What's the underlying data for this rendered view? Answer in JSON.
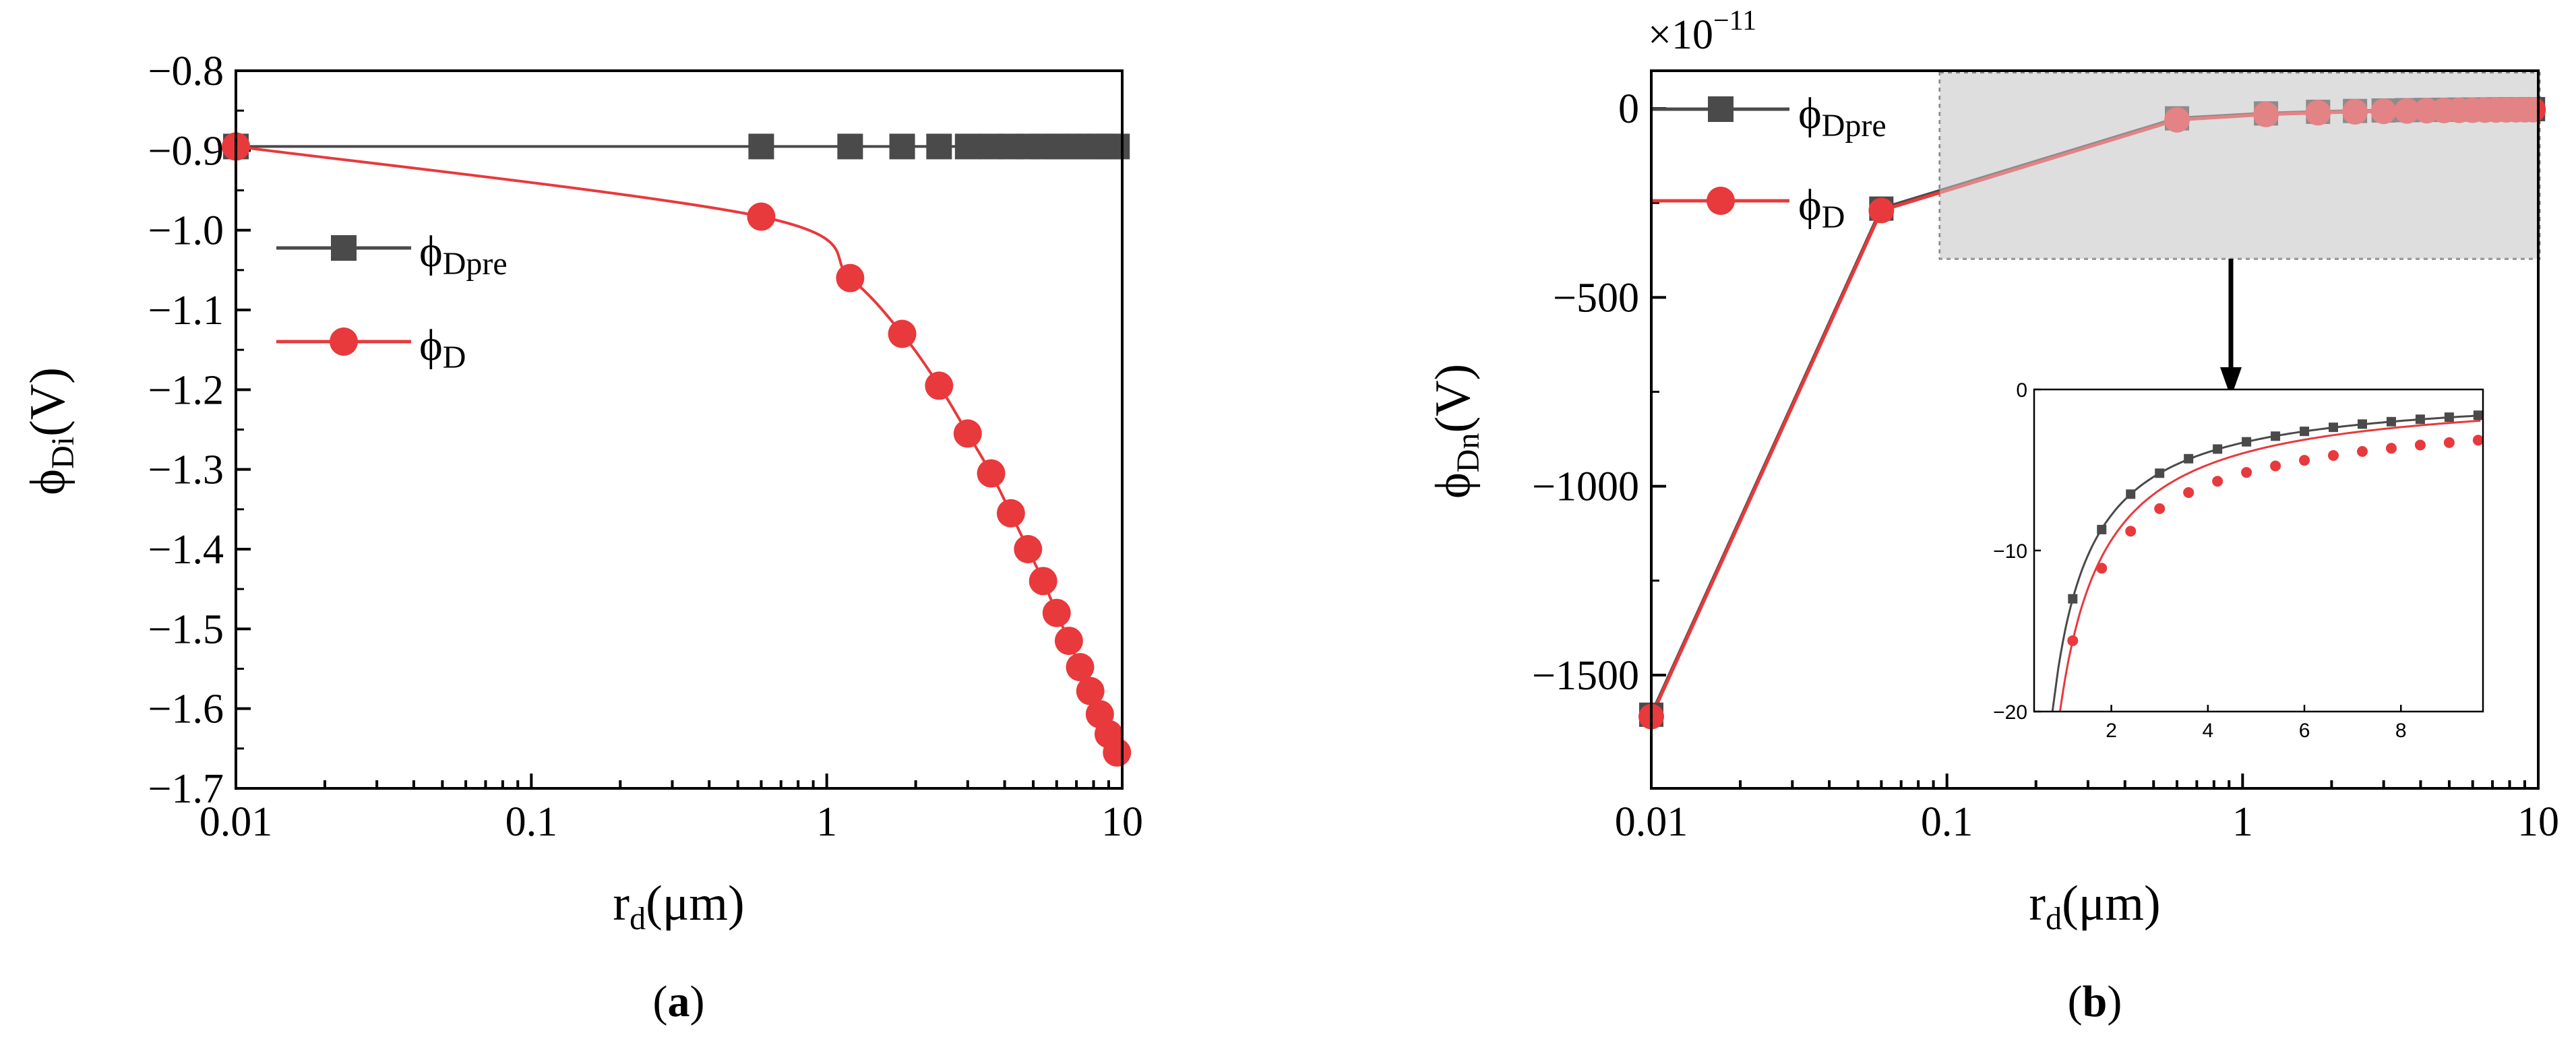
{
  "chart_data": [
    {
      "panel_label": "(a)",
      "panel_letter": "a",
      "type": "line",
      "xscale": "log",
      "xlabel": {
        "main": "r",
        "sub": "d",
        "rest": "(μm)"
      },
      "ylabel": {
        "main": "ϕ",
        "sub": "Di",
        "rest": "(V)"
      },
      "xlim": [
        0.01,
        10
      ],
      "ylim": [
        -1.7,
        -0.8
      ],
      "xticks": [
        "0.01",
        "0.1",
        "1",
        "10"
      ],
      "yticks": [
        "−0.8",
        "−0.9",
        "−1.0",
        "−1.1",
        "−1.2",
        "−1.3",
        "−1.4",
        "−1.5",
        "−1.6",
        "−1.7"
      ],
      "ytick_values": [
        -0.8,
        -0.9,
        -1.0,
        -1.1,
        -1.2,
        -1.3,
        -1.4,
        -1.5,
        -1.6,
        -1.7
      ],
      "legend_position": "center-left",
      "series": [
        {
          "name": "ϕDpre",
          "name_main": "ϕ",
          "name_sub": "Dpre",
          "color": "#4a4a4a",
          "marker": "square",
          "x": [
            0.01,
            0.6,
            1.2,
            1.8,
            2.4,
            3.0,
            3.6,
            4.2,
            4.8,
            5.4,
            6.0,
            6.6,
            7.2,
            7.8,
            8.4,
            9.0,
            9.6
          ],
          "y": [
            -0.895,
            -0.895,
            -0.895,
            -0.895,
            -0.895,
            -0.895,
            -0.895,
            -0.895,
            -0.895,
            -0.895,
            -0.895,
            -0.895,
            -0.895,
            -0.895,
            -0.895,
            -0.895,
            -0.895
          ]
        },
        {
          "name": "ϕD",
          "name_main": "ϕ",
          "name_sub": "D",
          "color": "#e8393c",
          "marker": "circle",
          "x": [
            0.01,
            0.6,
            1.2,
            1.8,
            2.4,
            3.0,
            3.6,
            4.2,
            4.8,
            5.4,
            6.0,
            6.6,
            7.2,
            7.8,
            8.4,
            9.0,
            9.6
          ],
          "y": [
            -0.895,
            -0.983,
            -1.06,
            -1.13,
            -1.195,
            -1.255,
            -1.305,
            -1.355,
            -1.4,
            -1.44,
            -1.48,
            -1.515,
            -1.548,
            -1.578,
            -1.607,
            -1.632,
            -1.655
          ]
        }
      ]
    },
    {
      "panel_label": "(b)",
      "panel_letter": "b",
      "type": "line",
      "xscale": "log",
      "xlabel": {
        "main": "r",
        "sub": "d",
        "rest": "(μm)"
      },
      "ylabel": {
        "main": "ϕ",
        "sub": "Dn",
        "rest": "(V)"
      },
      "multiplier": {
        "base": "×10",
        "exp": "−11"
      },
      "xlim": [
        0.01,
        10
      ],
      "ylim": [
        -1800,
        100
      ],
      "xticks": [
        "0.01",
        "0.1",
        "1",
        "10"
      ],
      "yticks": [
        "0",
        "−500",
        "−1000",
        "−1500"
      ],
      "ytick_values": [
        0,
        -500,
        -1000,
        -1500
      ],
      "legend_position": "top-left",
      "series": [
        {
          "name": "ϕDpre",
          "name_main": "ϕ",
          "name_sub": "Dpre",
          "color": "#4a4a4a",
          "marker": "square",
          "x": [
            0.01,
            0.06,
            0.6,
            1.2,
            1.8,
            2.4,
            3.0,
            3.6,
            4.2,
            4.8,
            5.4,
            6.0,
            6.6,
            7.2,
            7.8,
            8.4,
            9.0,
            9.6
          ],
          "y": [
            -1605,
            -265,
            -26,
            -13,
            -8.7,
            -6.5,
            -5.2,
            -4.3,
            -3.7,
            -3.25,
            -2.9,
            -2.6,
            -2.35,
            -2.15,
            -2.0,
            -1.85,
            -1.72,
            -1.6
          ]
        },
        {
          "name": "ϕD",
          "name_main": "ϕ",
          "name_sub": "D",
          "color": "#e8393c",
          "marker": "circle",
          "x": [
            0.01,
            0.06,
            0.6,
            1.2,
            1.8,
            2.4,
            3.0,
            3.6,
            4.2,
            4.8,
            5.4,
            6.0,
            6.6,
            7.2,
            7.8,
            8.4,
            9.0,
            9.6
          ],
          "y": [
            -1610,
            -270,
            -30,
            -15.6,
            -11.1,
            -8.8,
            -7.4,
            -6.4,
            -5.7,
            -5.15,
            -4.75,
            -4.4,
            -4.1,
            -3.85,
            -3.65,
            -3.45,
            -3.3,
            -3.15
          ]
        }
      ],
      "inset": {
        "xscale": "linear",
        "xlim": [
          0.4,
          9.7
        ],
        "ylim": [
          -20,
          0
        ],
        "xticks": [
          "2",
          "4",
          "6",
          "8"
        ],
        "xtick_values": [
          2,
          4,
          6,
          8
        ],
        "yticks": [
          "0",
          "−10",
          "−20"
        ],
        "ytick_values": [
          0,
          -10,
          -20
        ]
      }
    }
  ]
}
